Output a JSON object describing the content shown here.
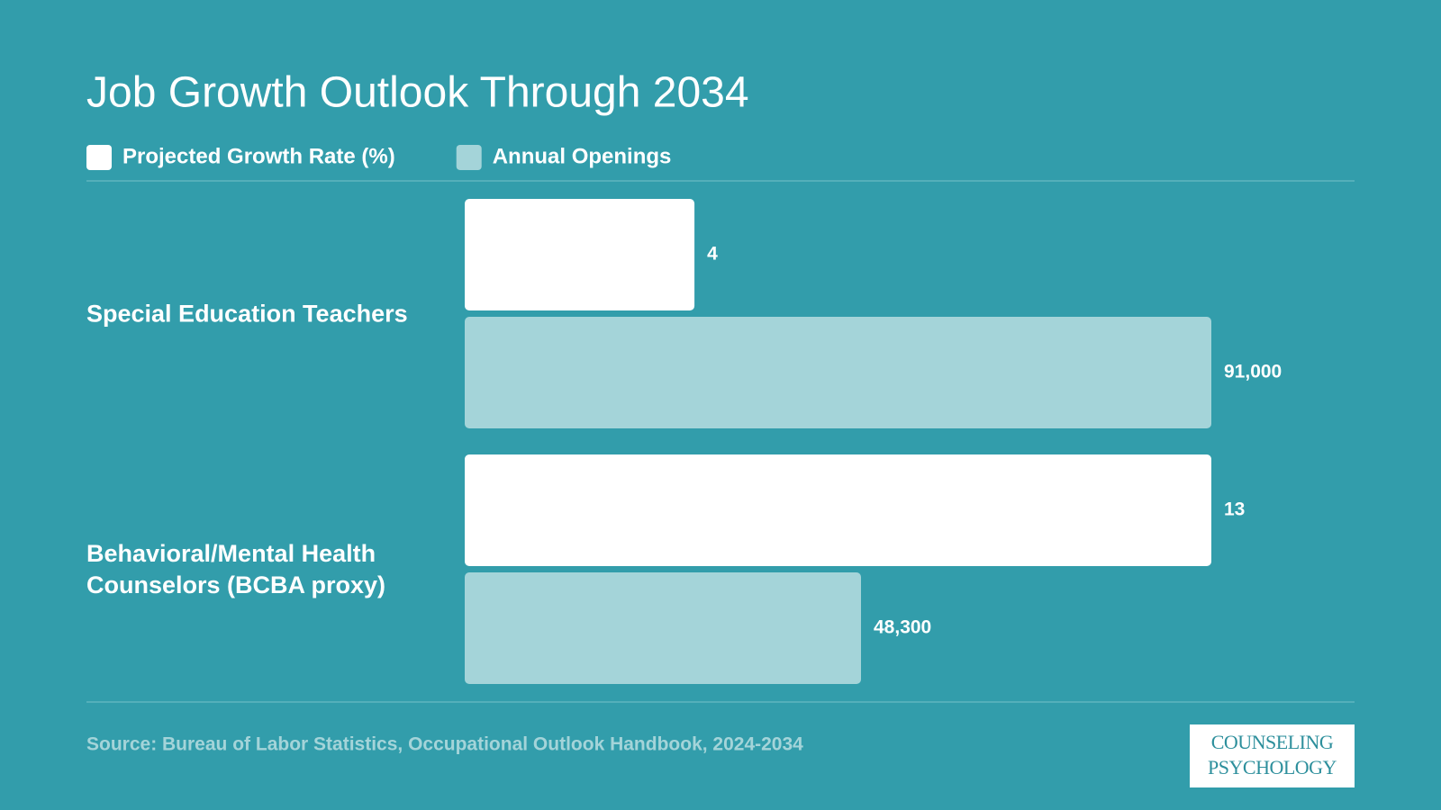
{
  "chart_data": {
    "type": "bar",
    "orientation": "horizontal",
    "title": "Job Growth Outlook Through 2034",
    "categories": [
      "Special Education Teachers",
      "Behavioral/Mental Health Counselors (BCBA proxy)"
    ],
    "series": [
      {
        "name": "Projected Growth Rate (%)",
        "color": "#ffffff",
        "values": [
          4,
          13
        ]
      },
      {
        "name": "Annual Openings",
        "color": "#a4d4d9",
        "values": [
          91000,
          48300
        ],
        "value_labels": [
          "91,000",
          "48,300"
        ],
        "axis": "x2"
      }
    ],
    "xlim": [
      0,
      13
    ],
    "x2lim": [
      0,
      91000
    ],
    "source": "Source: Bureau of Labor Statistics, Occupational Outlook Handbook, 2024-2034"
  },
  "logo": {
    "line1": "COUNSELING",
    "line2": "PSYCHOLOGY"
  }
}
